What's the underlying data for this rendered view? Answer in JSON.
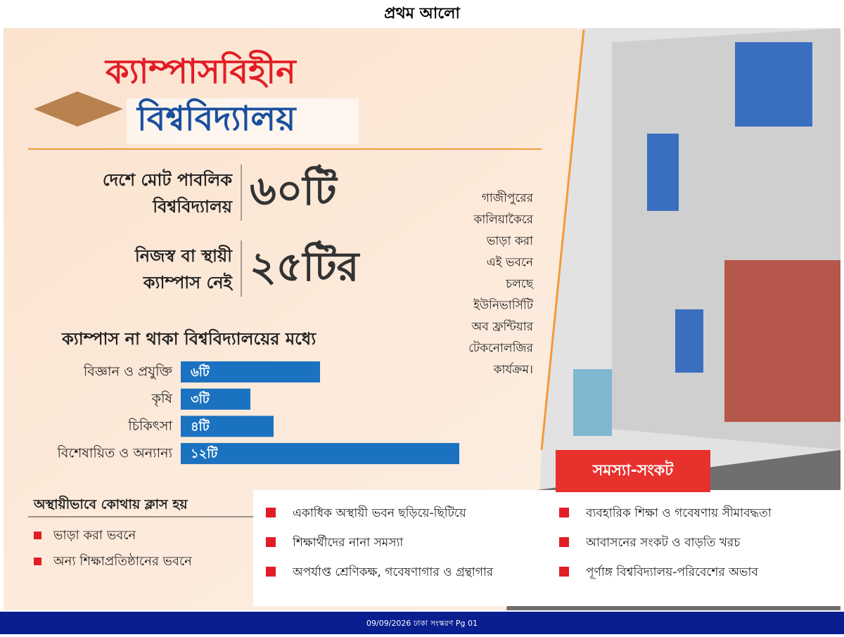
{
  "header": {
    "logo": "প্রথম আলো"
  },
  "title": {
    "line1": "ক্যাম্পাসবিহীন",
    "line2": "বিশ্ববিদ্যালয়"
  },
  "stats": [
    {
      "label_lines": [
        "দেশে মোট পাবলিক",
        "বিশ্ববিদ্যালয়"
      ],
      "value": "৬০টি"
    },
    {
      "label_lines": [
        "নিজস্ব বা স্থায়ী",
        "ক্যাম্পাস নেই"
      ],
      "value": "২৫টির"
    }
  ],
  "breakdown": {
    "heading": "ক্যাম্পাস না থাকা বিশ্ববিদ্যালয়ের মধ্যে",
    "bars": [
      {
        "label": "বিজ্ঞান ও প্রযুক্তি",
        "value": 6,
        "value_label": "৬টি"
      },
      {
        "label": "কৃষি",
        "value": 3,
        "value_label": "৩টি"
      },
      {
        "label": "চিকিৎসা",
        "value": 4,
        "value_label": "৪টি"
      },
      {
        "label": "বিশেষায়িত ও অন্যান্য",
        "value": 12,
        "value_label": "১২টি"
      }
    ]
  },
  "temporary": {
    "heading": "অস্থায়ীভাবে কোথায় ক্লাস হয়",
    "items": [
      "ভাড়া করা ভবনে",
      "অন্য শিক্ষাপ্রতিষ্ঠানের ভবনে"
    ]
  },
  "photo_caption": [
    "গাজীপুরের",
    "কালিয়াকৈরে",
    "ভাড়া করা",
    "এই ভবনে",
    "চলছে",
    "ইউনিভার্সিটি",
    "অব ফ্রন্টিয়ার",
    "টেকনোলজির",
    "কার্যক্রম।"
  ],
  "problems": {
    "heading": "সমস্যা-সংকট",
    "columns": [
      [
        "একাধিক অস্থায়ী ভবন ছড়িয়ে-ছিটিয়ে",
        "শিক্ষার্থীদের নানা সমস্যা",
        "অপর্যাপ্ত শ্রেণিকক্ষ, গবেষণাগার ও গ্রন্থাগার"
      ],
      [
        "ব্যবহারিক শিক্ষা ও গবেষণায় সীমাবদ্ধতা",
        "আবাসনের সংকট ও বাড়তি খরচ",
        "পূর্ণাঙ্গ বিশ্ববিদ্যালয়-পরিবেশের অভাব"
      ]
    ]
  },
  "footer": {
    "text": "09/09/2026 ঢাকা সংস্করণ Pg 01"
  }
}
